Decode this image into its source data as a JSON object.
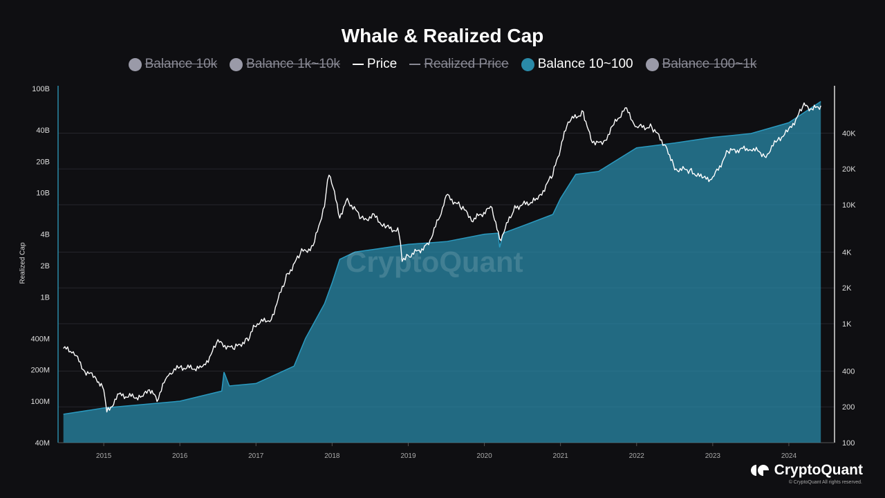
{
  "chart_data": {
    "type": "line",
    "title": "Whale & Realized Cap",
    "ylabel": "Realized Cap",
    "left_axis": {
      "scale": "log",
      "range": [
        40000000,
        100000000000
      ],
      "ticks": [
        "40M",
        "100M",
        "200M",
        "400M",
        "1B",
        "2B",
        "4B",
        "10B",
        "20B",
        "40B",
        "100B"
      ],
      "tick_values": [
        40000000.0,
        100000000.0,
        200000000.0,
        400000000.0,
        1000000000.0,
        2000000000.0,
        4000000000.0,
        10000000000.0,
        20000000000.0,
        40000000000.0,
        100000000000.0
      ]
    },
    "right_axis": {
      "scale": "log",
      "range": [
        100,
        100000
      ],
      "ticks": [
        "100",
        "200",
        "400",
        "1K",
        "2K",
        "4K",
        "10K",
        "20K",
        "40K"
      ],
      "tick_values": [
        100,
        200,
        400,
        1000,
        2000,
        4000,
        10000,
        20000,
        40000
      ]
    },
    "x_axis": {
      "range": [
        2014.4,
        2024.6
      ],
      "ticks": [
        "2015",
        "2016",
        "2017",
        "2018",
        "2019",
        "2020",
        "2021",
        "2022",
        "2023",
        "2024"
      ]
    },
    "grid": true,
    "legend_placement": "top",
    "legend": [
      {
        "name": "Balance 10k",
        "color": "#9a9aa8",
        "visible": false,
        "kind": "dot"
      },
      {
        "name": "Balance 1k~10k",
        "color": "#9a9aa8",
        "visible": false,
        "kind": "dot"
      },
      {
        "name": "Price",
        "color": "#ffffff",
        "visible": true,
        "kind": "line"
      },
      {
        "name": "Realized Price",
        "color": "#8a8a95",
        "visible": false,
        "kind": "line"
      },
      {
        "name": "Balance 10~100",
        "color": "#2a8aa8",
        "visible": true,
        "kind": "dot"
      },
      {
        "name": "Balance 100~1k",
        "color": "#9a9aa8",
        "visible": false,
        "kind": "dot"
      }
    ],
    "series": [
      {
        "name": "Balance 10~100",
        "axis": "left",
        "type": "area",
        "color": "#2a8aa8",
        "x": [
          2014.47,
          2015.0,
          2016.0,
          2016.55,
          2016.58,
          2016.65,
          2017.0,
          2017.5,
          2017.65,
          2017.9,
          2018.0,
          2018.1,
          2018.3,
          2018.6,
          2019.0,
          2019.5,
          2020.0,
          2020.18,
          2020.2,
          2020.25,
          2020.5,
          2020.9,
          2021.0,
          2021.2,
          2021.5,
          2022.0,
          2022.5,
          2023.0,
          2023.5,
          2024.0,
          2024.42
        ],
        "y": [
          75000000.0,
          86000000.0,
          100000000.0,
          125000000.0,
          190000000.0,
          140000000.0,
          148000000.0,
          217000000.0,
          400000000.0,
          860000000.0,
          1370000000.0,
          2300000000.0,
          2700000000.0,
          2900000000.0,
          3200000000.0,
          3400000000.0,
          4000000000.0,
          4100000000.0,
          3000000000.0,
          4100000000.0,
          4800000000.0,
          6200000000.0,
          8800000000.0,
          15000000000.0,
          16000000000.0,
          27000000000.0,
          30000000000.0,
          34000000000.0,
          37000000000.0,
          47000000000.0,
          75000000000.0
        ]
      },
      {
        "name": "Price",
        "axis": "right",
        "type": "line",
        "color": "#ffffff",
        "x": [
          2014.47,
          2014.6,
          2014.75,
          2014.9,
          2015.0,
          2015.04,
          2015.2,
          2015.5,
          2015.6,
          2015.7,
          2015.85,
          2016.0,
          2016.3,
          2016.5,
          2016.7,
          2016.9,
          2017.0,
          2017.2,
          2017.4,
          2017.6,
          2017.75,
          2017.9,
          2017.96,
          2018.1,
          2018.2,
          2018.4,
          2018.55,
          2018.7,
          2018.88,
          2018.92,
          2019.0,
          2019.25,
          2019.45,
          2019.5,
          2019.7,
          2019.85,
          2020.1,
          2020.2,
          2020.4,
          2020.7,
          2020.9,
          2021.0,
          2021.1,
          2021.3,
          2021.4,
          2021.55,
          2021.7,
          2021.85,
          2022.0,
          2022.2,
          2022.4,
          2022.5,
          2022.7,
          2022.88,
          2023.0,
          2023.2,
          2023.5,
          2023.7,
          2023.85,
          2024.0,
          2024.2,
          2024.3,
          2024.42
        ],
        "y": [
          620,
          580,
          400,
          350,
          280,
          180,
          250,
          240,
          280,
          230,
          380,
          430,
          420,
          700,
          610,
          750,
          1000,
          1100,
          2500,
          4000,
          4400,
          10000,
          19000,
          8000,
          11000,
          7500,
          8000,
          6500,
          6000,
          3500,
          3700,
          4500,
          9000,
          12000,
          9500,
          7500,
          9500,
          5000,
          9500,
          11000,
          18000,
          30000,
          50000,
          60000,
          35000,
          32000,
          47000,
          65000,
          45000,
          45000,
          30000,
          20000,
          19500,
          16500,
          16600,
          28000,
          30000,
          26000,
          35000,
          42000,
          68000,
          63000,
          68000
        ]
      }
    ]
  },
  "watermark": "CryptoQuant",
  "logo": "CryptoQuant",
  "copyright": "© CryptoQuant All rights reserved."
}
